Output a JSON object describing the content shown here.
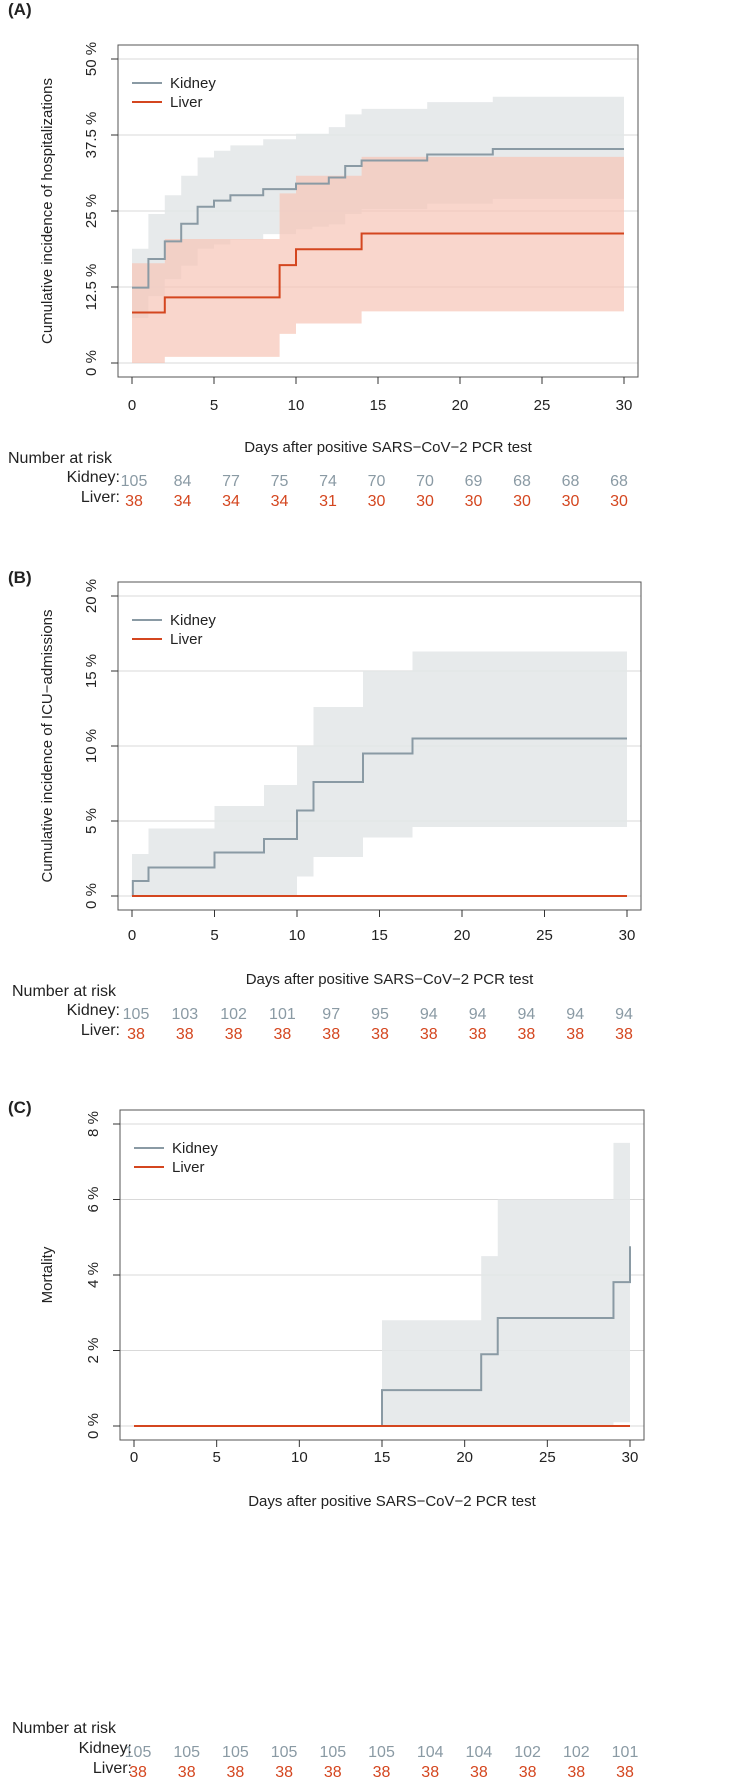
{
  "colors": {
    "kidney": "#8a9aa4",
    "liver": "#d4461f",
    "kidney_band": "#e3e6e8",
    "liver_band": "#f6c4b6",
    "overlap_band": "#d6b0a6",
    "grid": "#d9d9d9"
  },
  "chart_data": [
    {
      "panel": "(A)",
      "type": "line",
      "ylabel": "Cumulative incidence of hospitalizations",
      "xlabel": "Days after positive SARS−CoV−2 PCR test",
      "ylim": [
        0,
        50
      ],
      "xlim": [
        0,
        30
      ],
      "yticks": [
        0,
        12.5,
        25,
        37.5,
        50
      ],
      "ytick_labels": [
        "0 %",
        "12.5 %",
        "25 %",
        "37.5 %",
        "50 %"
      ],
      "xticks": [
        0,
        5,
        10,
        15,
        20,
        25,
        30
      ],
      "grid": true,
      "legend_position": "top-left",
      "series": [
        {
          "name": "Kidney",
          "steps": [
            [
              0,
              12.4
            ],
            [
              1,
              17.1
            ],
            [
              2,
              20.0
            ],
            [
              3,
              22.9
            ],
            [
              4,
              25.7
            ],
            [
              5,
              26.7
            ],
            [
              6,
              27.6
            ],
            [
              8,
              28.6
            ],
            [
              10,
              29.5
            ],
            [
              12,
              30.5
            ],
            [
              13,
              32.4
            ],
            [
              14,
              33.3
            ],
            [
              18,
              34.3
            ],
            [
              22,
              35.2
            ],
            [
              30,
              35.2
            ]
          ],
          "band": [
            [
              0,
              7.4,
              18.8
            ],
            [
              1,
              11.0,
              24.5
            ],
            [
              2,
              13.8,
              27.6
            ],
            [
              3,
              16.0,
              30.8
            ],
            [
              4,
              18.8,
              33.8
            ],
            [
              5,
              19.5,
              34.9
            ],
            [
              6,
              20.3,
              35.8
            ],
            [
              8,
              21.2,
              36.8
            ],
            [
              10,
              22.0,
              37.7
            ],
            [
              11,
              22.4,
              37.7
            ],
            [
              12,
              22.8,
              38.8
            ],
            [
              13,
              24.5,
              40.9
            ],
            [
              14,
              25.3,
              41.8
            ],
            [
              18,
              26.2,
              42.9
            ],
            [
              22,
              27.0,
              43.8
            ],
            [
              30,
              27.0,
              43.8
            ]
          ]
        },
        {
          "name": "Liver",
          "steps": [
            [
              0,
              8.3
            ],
            [
              2,
              10.8
            ],
            [
              9,
              16.1
            ],
            [
              10,
              18.7
            ],
            [
              14,
              21.3
            ],
            [
              30,
              21.3
            ]
          ],
          "band": [
            [
              0,
              0,
              16.4
            ],
            [
              2,
              1.0,
              20.4
            ],
            [
              3,
              1.0,
              20.4
            ],
            [
              4,
              1.0,
              20.4
            ],
            [
              9,
              4.8,
              27.9
            ],
            [
              10,
              6.5,
              30.8
            ],
            [
              14,
              8.5,
              33.9
            ],
            [
              30,
              8.5,
              33.9
            ]
          ]
        }
      ],
      "risk_table": {
        "title": "Number at risk",
        "x": [
          0,
          3,
          6,
          9,
          12,
          15,
          18,
          21,
          24,
          27,
          30
        ],
        "rows": [
          {
            "label": "Kidney:",
            "values": [
              "105",
              "84",
              "77",
              "75",
              "74",
              "70",
              "70",
              "69",
              "68",
              "68",
              "68"
            ]
          },
          {
            "label": "Liver:",
            "values": [
              "38",
              "34",
              "34",
              "34",
              "31",
              "30",
              "30",
              "30",
              "30",
              "30",
              "30"
            ]
          }
        ]
      }
    },
    {
      "panel": "(B)",
      "type": "line",
      "ylabel": "Cumulative incidence of ICU−admissions",
      "xlabel": "Days after positive SARS−CoV−2 PCR test",
      "ylim": [
        0,
        20
      ],
      "xlim": [
        0,
        30
      ],
      "yticks": [
        0,
        5,
        10,
        15,
        20
      ],
      "ytick_labels": [
        "0 %",
        "5 %",
        "10 %",
        "15 %",
        "20 %"
      ],
      "xticks": [
        0,
        5,
        10,
        15,
        20,
        25,
        30
      ],
      "grid": true,
      "legend_position": "top-left",
      "series": [
        {
          "name": "Kidney",
          "steps": [
            [
              0,
              0
            ],
            [
              0.05,
              1.0
            ],
            [
              1,
              1.9
            ],
            [
              5,
              2.9
            ],
            [
              8,
              3.8
            ],
            [
              10,
              5.7
            ],
            [
              11,
              7.6
            ],
            [
              14,
              9.5
            ],
            [
              17,
              10.5
            ],
            [
              30,
              10.5
            ]
          ],
          "band": [
            [
              0,
              0,
              2.8
            ],
            [
              1,
              0,
              4.5
            ],
            [
              5,
              0,
              6.0
            ],
            [
              8,
              0,
              7.4
            ],
            [
              10,
              1.3,
              10.0
            ],
            [
              11,
              2.6,
              12.6
            ],
            [
              14,
              3.9,
              15.0
            ],
            [
              17,
              4.6,
              16.3
            ],
            [
              30,
              4.6,
              16.3
            ]
          ]
        },
        {
          "name": "Liver",
          "steps": [
            [
              0,
              0
            ],
            [
              30,
              0
            ]
          ],
          "band": []
        }
      ],
      "risk_table": {
        "title": "Number at risk",
        "x": [
          0,
          3,
          6,
          9,
          12,
          15,
          18,
          21,
          24,
          27,
          30
        ],
        "rows": [
          {
            "label": "Kidney:",
            "values": [
              "105",
              "103",
              "102",
              "101",
              "97",
              "95",
              "94",
              "94",
              "94",
              "94",
              "94"
            ]
          },
          {
            "label": "Liver:",
            "values": [
              "38",
              "38",
              "38",
              "38",
              "38",
              "38",
              "38",
              "38",
              "38",
              "38",
              "38"
            ]
          }
        ]
      }
    },
    {
      "panel": "(C)",
      "type": "line",
      "ylabel": "Mortality",
      "xlabel": "Days after positive SARS−CoV−2 PCR test",
      "ylim": [
        0,
        8
      ],
      "xlim": [
        0,
        30
      ],
      "yticks": [
        0,
        2,
        4,
        6,
        8
      ],
      "ytick_labels": [
        "0 %",
        "2 %",
        "4 %",
        "6 %",
        "8 %"
      ],
      "xticks": [
        0,
        5,
        10,
        15,
        20,
        25,
        30
      ],
      "grid": true,
      "legend_position": "top-left",
      "series": [
        {
          "name": "Kidney",
          "steps": [
            [
              0,
              0
            ],
            [
              15,
              0.95
            ],
            [
              21,
              1.9
            ],
            [
              22,
              2.86
            ],
            [
              29,
              3.81
            ],
            [
              30,
              4.76
            ]
          ],
          "band": [
            [
              15,
              0,
              2.8
            ],
            [
              21,
              0,
              4.5
            ],
            [
              22,
              0,
              6.0
            ],
            [
              29,
              0.1,
              7.5
            ],
            [
              30,
              0.1,
              7.5
            ]
          ]
        },
        {
          "name": "Liver",
          "steps": [
            [
              0,
              0
            ],
            [
              30,
              0
            ]
          ],
          "band": []
        }
      ],
      "risk_table": {
        "title": "Number at risk",
        "x": [
          0,
          3,
          6,
          9,
          12,
          15,
          18,
          21,
          24,
          27,
          30
        ],
        "rows": [
          {
            "label": "Kidney:",
            "values": [
              "105",
              "105",
              "105",
              "105",
              "105",
              "105",
              "104",
              "104",
              "102",
              "102",
              "101"
            ]
          },
          {
            "label": "Liver:",
            "values": [
              "38",
              "38",
              "38",
              "38",
              "38",
              "38",
              "38",
              "38",
              "38",
              "38",
              "38"
            ]
          }
        ]
      }
    }
  ]
}
